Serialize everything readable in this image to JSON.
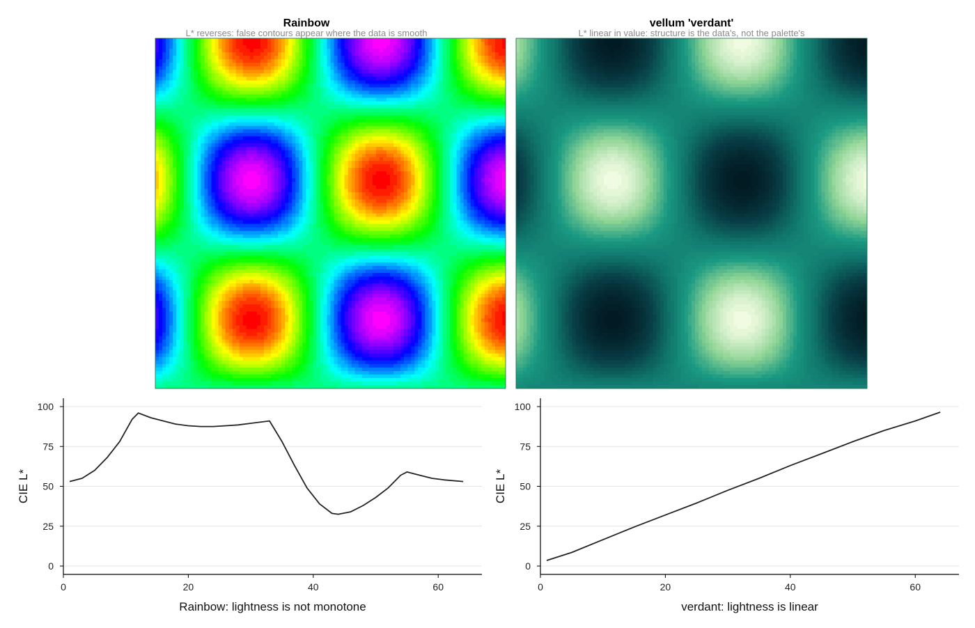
{
  "panels": [
    {
      "title": "Rainbow",
      "subtitle": "L* reverses: false contours appear where the data is smooth",
      "colormap": "rainbow"
    },
    {
      "title": "vellum 'verdant'",
      "subtitle": "L* linear in value: structure is the data's, not the palette's",
      "colormap": "verdant"
    }
  ],
  "colors": {
    "line": "#222222",
    "grid": "#e4e4e4",
    "axis": "#000000",
    "verdant_stops": [
      "#021a22",
      "#083d45",
      "#0f7269",
      "#1a9a82",
      "#8fd496",
      "#f1fbe1"
    ]
  },
  "chart_data": [
    {
      "type": "line",
      "xlabel": "Rainbow: lightness is not monotone",
      "ylabel": "CIE L*",
      "xlim": [
        0,
        67
      ],
      "ylim": [
        0,
        100
      ],
      "xticks": [
        0,
        20,
        40,
        60
      ],
      "yticks": [
        0,
        25,
        50,
        75,
        100
      ],
      "grid": true,
      "x": [
        1,
        3,
        5,
        7,
        9,
        11,
        12,
        14,
        16,
        18,
        20,
        22,
        24,
        26,
        28,
        30,
        33,
        35,
        37,
        39,
        41,
        43,
        44,
        46,
        48,
        50,
        52,
        54,
        55,
        57,
        59,
        61,
        64
      ],
      "y": [
        53,
        55,
        60,
        68,
        78,
        92,
        96,
        93,
        91,
        89,
        88,
        87.5,
        87.5,
        88,
        88.5,
        89.5,
        91,
        78,
        63,
        49,
        39,
        33,
        32.5,
        34,
        38,
        43,
        49,
        57,
        59,
        57,
        55,
        54,
        53
      ]
    },
    {
      "type": "line",
      "xlabel": "verdant: lightness is linear",
      "ylabel": "CIE L*",
      "xlim": [
        0,
        67
      ],
      "ylim": [
        0,
        100
      ],
      "xticks": [
        0,
        20,
        40,
        60
      ],
      "yticks": [
        0,
        25,
        50,
        75,
        100
      ],
      "grid": true,
      "x": [
        1,
        5,
        10,
        15,
        20,
        25,
        30,
        35,
        40,
        45,
        50,
        55,
        60,
        64
      ],
      "y": [
        3.5,
        8.5,
        16.5,
        24.5,
        32,
        39.5,
        47.5,
        55,
        63,
        70.5,
        78,
        85,
        91,
        96.5
      ]
    }
  ]
}
